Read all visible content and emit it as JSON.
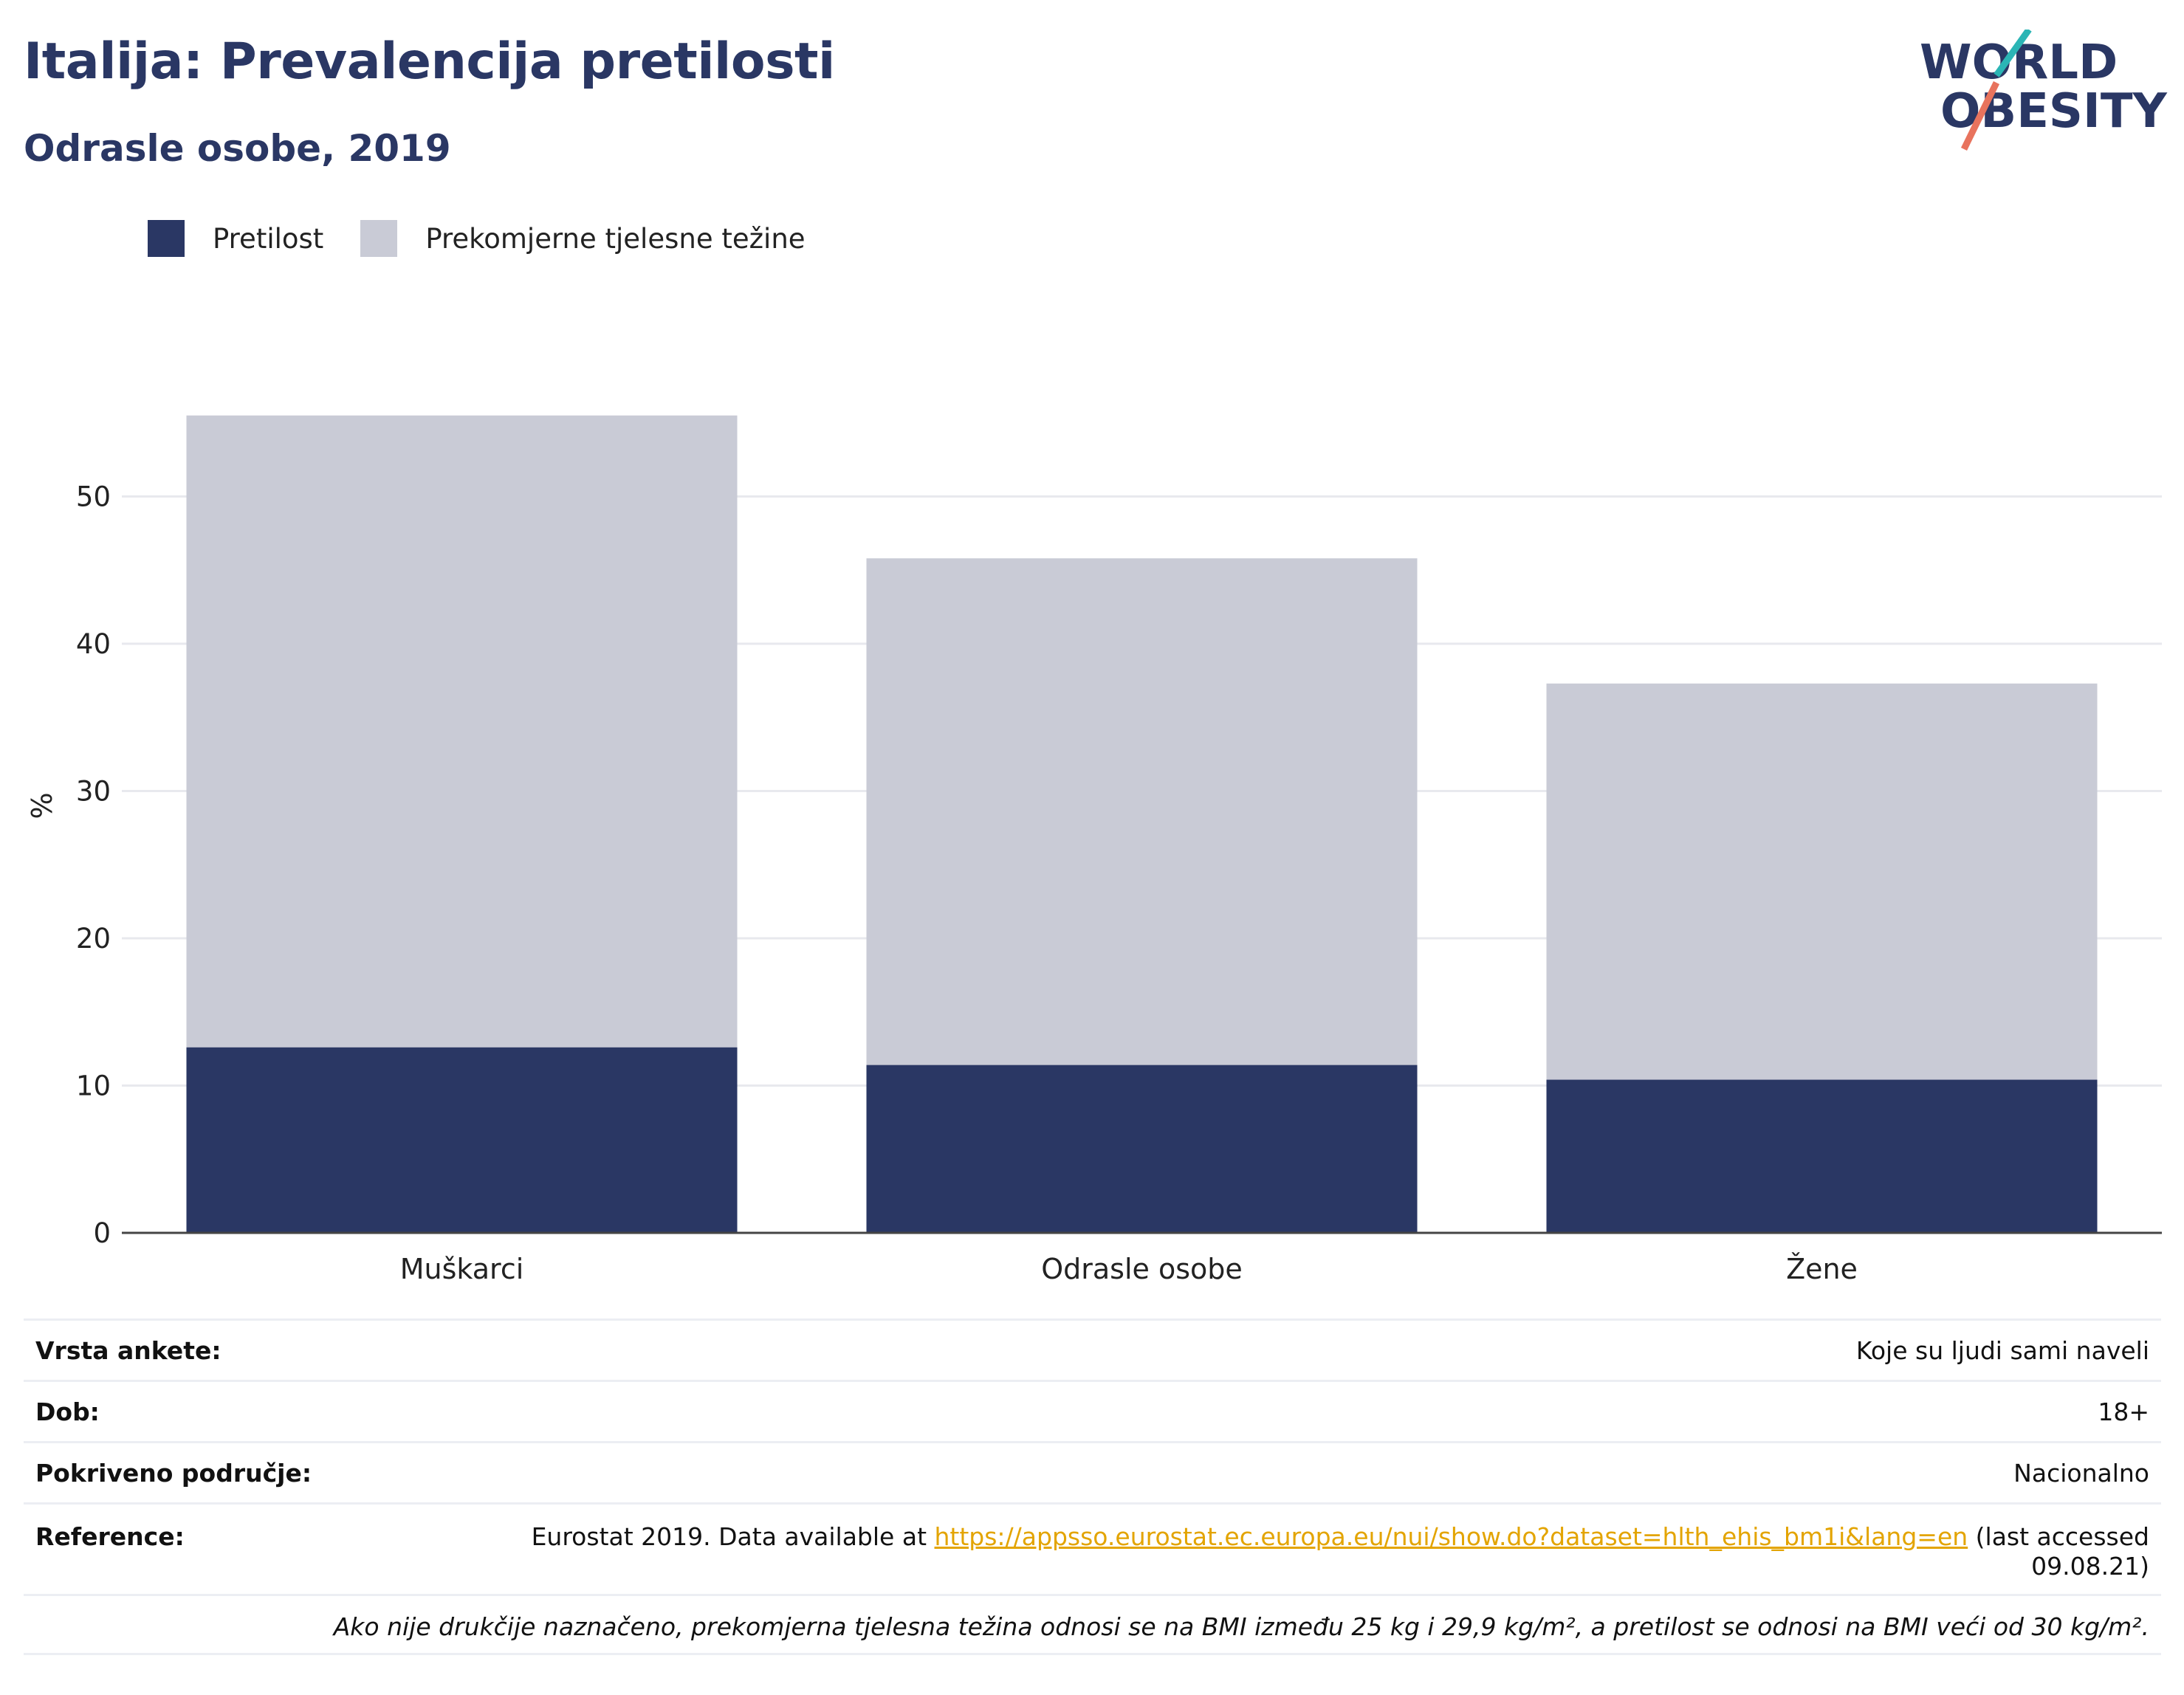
{
  "header": {
    "title": "Italija: Prevalencija pretilosti",
    "subtitle": "Odrasle osobe, 2019"
  },
  "logo": {
    "line1": "WORLD",
    "line2": "OBESITY"
  },
  "colors": {
    "obesity": "#2a3764",
    "overweight": "#c9cbd6",
    "accent_teal": "#2bb5b5",
    "accent_coral": "#e8735d",
    "link": "#e3a400"
  },
  "chart_data": {
    "type": "bar",
    "stacked": true,
    "categories": [
      "Muškarci",
      "Odrasle osobe",
      "Žene"
    ],
    "series": [
      {
        "name": "Pretilost",
        "values": [
          12.6,
          11.4,
          10.4
        ]
      },
      {
        "name": "Prekomjerne tjelesne težine",
        "values": [
          42.9,
          34.4,
          26.9
        ]
      }
    ],
    "ylabel": "%",
    "ylim": [
      0,
      55.5
    ],
    "yticks": [
      0,
      10,
      20,
      30,
      40,
      50
    ],
    "grid": true,
    "legend_position": "top-left"
  },
  "meta": {
    "survey_type": {
      "label": "Vrsta ankete:",
      "value": "Koje su ljudi sami naveli"
    },
    "age": {
      "label": "Dob:",
      "value": "18+"
    },
    "coverage": {
      "label": "Pokriveno područje:",
      "value": "Nacionalno"
    },
    "reference": {
      "label": "Reference:",
      "prefix": "Eurostat 2019. Data available at ",
      "url": "https://appsso.eurostat.ec.europa.eu/nui/show.do?dataset=hlth_ehis_bm1i&lang=en",
      "suffix": " (last accessed",
      "suffix2": "09.08.21)"
    },
    "note": "Ako nije drukčije naznačeno, prekomjerna tjelesna težina odnosi se na BMI između 25 kg i 29,9 kg/m², a pretilost se odnosi na BMI veći od 30 kg/m²."
  }
}
